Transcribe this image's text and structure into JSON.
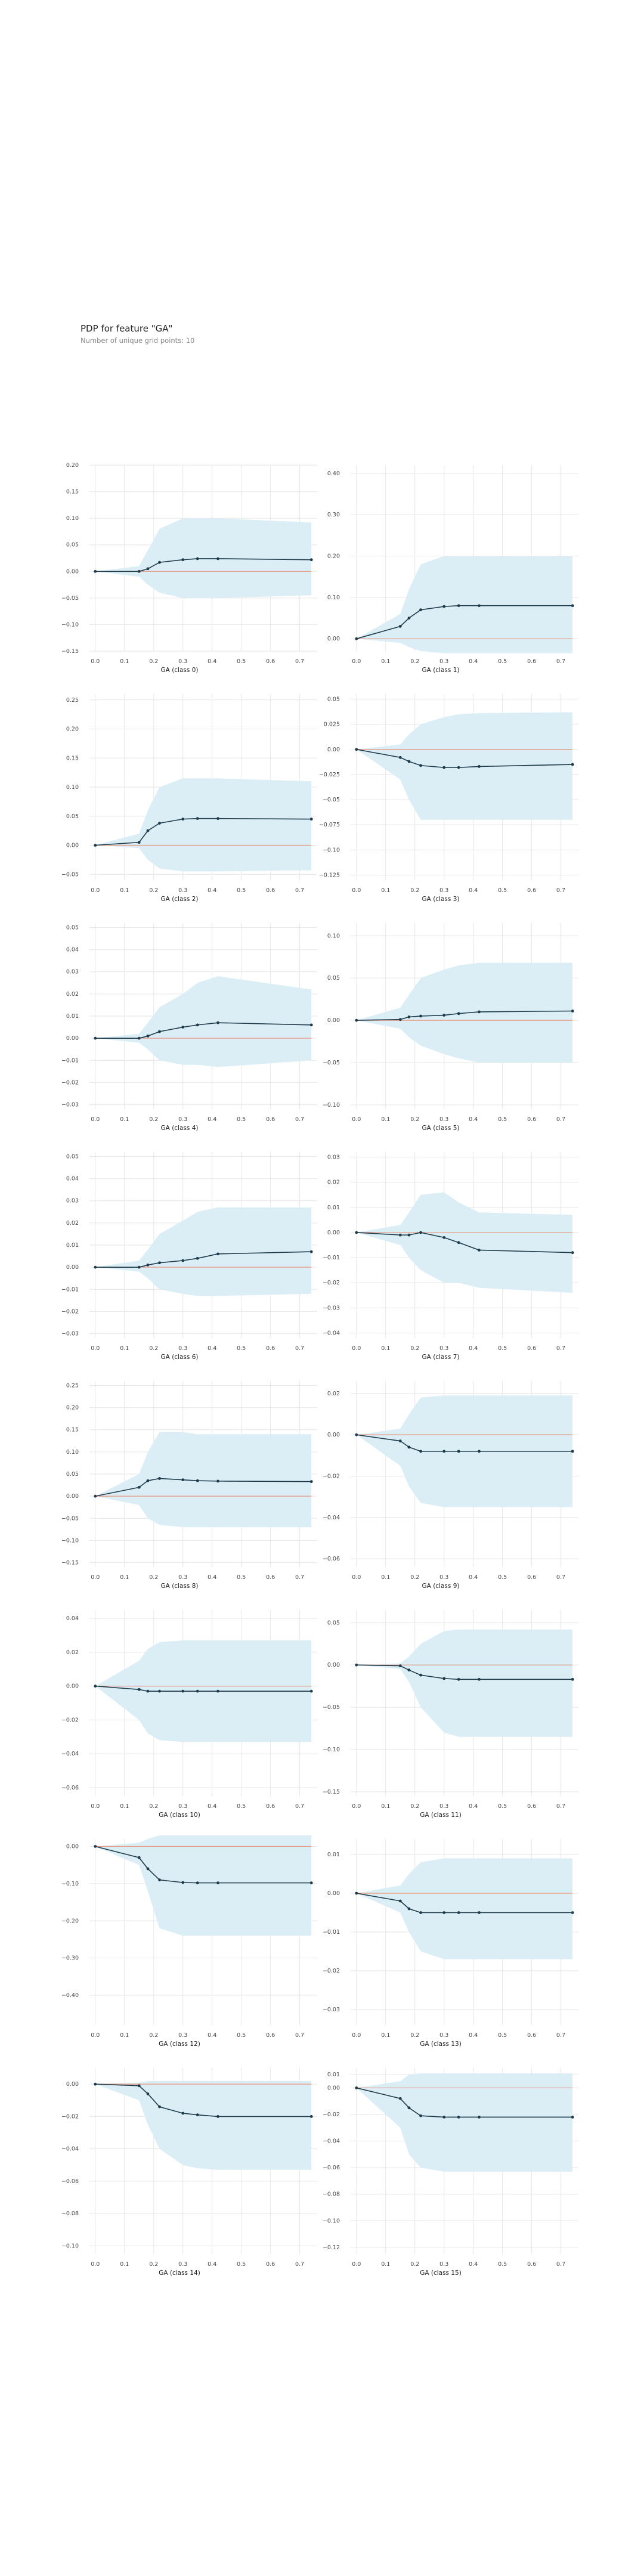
{
  "header": {
    "title": "PDP for feature \"GA\"",
    "subtitle": "Number of unique grid points: 10"
  },
  "colors": {
    "band": "#dbeef6",
    "line": "#1d3b4a",
    "baseline": "#e8967e",
    "grid": "#e6e6e6",
    "tick_text": "#444444"
  },
  "chart_data": [
    {
      "type": "line",
      "xlabel": "GA (class 0)",
      "x": [
        0.0,
        0.15,
        0.18,
        0.22,
        0.3,
        0.35,
        0.42,
        0.74
      ],
      "y": [
        0.0,
        0.0,
        0.005,
        0.017,
        0.022,
        0.024,
        0.024,
        0.022
      ],
      "lower": [
        0.0,
        -0.01,
        -0.025,
        -0.04,
        -0.05,
        -0.05,
        -0.05,
        -0.045
      ],
      "upper": [
        0.0,
        0.01,
        0.04,
        0.08,
        0.1,
        0.1,
        0.1,
        0.092
      ],
      "xticks": [
        0.0,
        0.1,
        0.2,
        0.3,
        0.4,
        0.5,
        0.6,
        0.7
      ],
      "yticks": [
        -0.15,
        -0.1,
        -0.05,
        0.0,
        0.05,
        0.1,
        0.15,
        0.2
      ],
      "xlim": [
        -0.02,
        0.76
      ],
      "ylim": [
        -0.15,
        0.2
      ]
    },
    {
      "type": "line",
      "xlabel": "GA (class 1)",
      "x": [
        0.0,
        0.15,
        0.18,
        0.22,
        0.3,
        0.35,
        0.42,
        0.74
      ],
      "y": [
        0.0,
        0.03,
        0.05,
        0.07,
        0.078,
        0.08,
        0.08,
        0.08
      ],
      "lower": [
        0.0,
        -0.01,
        -0.02,
        -0.03,
        -0.035,
        -0.035,
        -0.035,
        -0.035
      ],
      "upper": [
        0.0,
        0.06,
        0.12,
        0.18,
        0.2,
        0.2,
        0.2,
        0.2
      ],
      "xticks": [
        0.0,
        0.1,
        0.2,
        0.3,
        0.4,
        0.5,
        0.6,
        0.7
      ],
      "yticks": [
        0.0,
        0.1,
        0.2,
        0.3,
        0.4
      ],
      "xlim": [
        -0.02,
        0.76
      ],
      "ylim": [
        -0.03,
        0.42
      ]
    },
    {
      "type": "line",
      "xlabel": "GA (class 2)",
      "x": [
        0.0,
        0.15,
        0.18,
        0.22,
        0.3,
        0.35,
        0.42,
        0.74
      ],
      "y": [
        0.0,
        0.005,
        0.025,
        0.038,
        0.045,
        0.046,
        0.046,
        0.045
      ],
      "lower": [
        0.0,
        -0.005,
        -0.025,
        -0.04,
        -0.045,
        -0.045,
        -0.045,
        -0.043
      ],
      "upper": [
        0.0,
        0.02,
        0.06,
        0.1,
        0.115,
        0.115,
        0.115,
        0.11
      ],
      "xticks": [
        0.0,
        0.1,
        0.2,
        0.3,
        0.4,
        0.5,
        0.6,
        0.7
      ],
      "yticks": [
        -0.05,
        0.0,
        0.05,
        0.1,
        0.15,
        0.2,
        0.25
      ],
      "xlim": [
        -0.02,
        0.76
      ],
      "ylim": [
        -0.06,
        0.26
      ]
    },
    {
      "type": "line",
      "xlabel": "GA (class 3)",
      "x": [
        0.0,
        0.15,
        0.18,
        0.22,
        0.3,
        0.35,
        0.42,
        0.74
      ],
      "y": [
        0.0,
        -0.008,
        -0.012,
        -0.016,
        -0.018,
        -0.018,
        -0.017,
        -0.015
      ],
      "lower": [
        0.0,
        -0.03,
        -0.05,
        -0.07,
        -0.07,
        -0.07,
        -0.07,
        -0.07
      ],
      "upper": [
        0.0,
        0.005,
        0.015,
        0.025,
        0.032,
        0.035,
        0.036,
        0.037
      ],
      "xticks": [
        0.0,
        0.1,
        0.2,
        0.3,
        0.4,
        0.5,
        0.6,
        0.7
      ],
      "yticks": [
        -0.125,
        -0.1,
        -0.075,
        -0.05,
        -0.025,
        0.0,
        0.025,
        0.05
      ],
      "xlim": [
        -0.02,
        0.76
      ],
      "ylim": [
        -0.13,
        0.055
      ]
    },
    {
      "type": "line",
      "xlabel": "GA (class 4)",
      "x": [
        0.0,
        0.15,
        0.18,
        0.22,
        0.3,
        0.35,
        0.42,
        0.74
      ],
      "y": [
        0.0,
        0.0,
        0.001,
        0.003,
        0.005,
        0.006,
        0.007,
        0.006
      ],
      "lower": [
        0.0,
        -0.002,
        -0.005,
        -0.01,
        -0.012,
        -0.012,
        -0.013,
        -0.01
      ],
      "upper": [
        0.0,
        0.002,
        0.007,
        0.014,
        0.02,
        0.025,
        0.028,
        0.022
      ],
      "xticks": [
        0.0,
        0.1,
        0.2,
        0.3,
        0.4,
        0.5,
        0.6,
        0.7
      ],
      "yticks": [
        -0.03,
        -0.02,
        -0.01,
        0.0,
        0.01,
        0.02,
        0.03,
        0.04,
        0.05
      ],
      "xlim": [
        -0.02,
        0.76
      ],
      "ylim": [
        -0.032,
        0.052
      ]
    },
    {
      "type": "line",
      "xlabel": "GA (class 5)",
      "x": [
        0.0,
        0.15,
        0.18,
        0.22,
        0.3,
        0.35,
        0.42,
        0.74
      ],
      "y": [
        0.0,
        0.001,
        0.004,
        0.005,
        0.006,
        0.008,
        0.01,
        0.011
      ],
      "lower": [
        0.0,
        -0.01,
        -0.02,
        -0.03,
        -0.04,
        -0.045,
        -0.05,
        -0.05
      ],
      "upper": [
        0.0,
        0.015,
        0.03,
        0.05,
        0.06,
        0.065,
        0.068,
        0.068
      ],
      "xticks": [
        0.0,
        0.1,
        0.2,
        0.3,
        0.4,
        0.5,
        0.6,
        0.7
      ],
      "yticks": [
        -0.1,
        -0.05,
        0.0,
        0.05,
        0.1
      ],
      "xlim": [
        -0.02,
        0.76
      ],
      "ylim": [
        -0.105,
        0.115
      ]
    },
    {
      "type": "line",
      "xlabel": "GA (class 6)",
      "x": [
        0.0,
        0.15,
        0.18,
        0.22,
        0.3,
        0.35,
        0.42,
        0.74
      ],
      "y": [
        0.0,
        0.0,
        0.001,
        0.002,
        0.003,
        0.004,
        0.006,
        0.007
      ],
      "lower": [
        0.0,
        -0.002,
        -0.005,
        -0.01,
        -0.012,
        -0.013,
        -0.013,
        -0.012
      ],
      "upper": [
        0.0,
        0.003,
        0.008,
        0.015,
        0.021,
        0.025,
        0.027,
        0.027
      ],
      "xticks": [
        0.0,
        0.1,
        0.2,
        0.3,
        0.4,
        0.5,
        0.6,
        0.7
      ],
      "yticks": [
        -0.03,
        -0.02,
        -0.01,
        0.0,
        0.01,
        0.02,
        0.03,
        0.04,
        0.05
      ],
      "xlim": [
        -0.02,
        0.76
      ],
      "ylim": [
        -0.032,
        0.052
      ]
    },
    {
      "type": "line",
      "xlabel": "GA (class 7)",
      "x": [
        0.0,
        0.15,
        0.18,
        0.22,
        0.3,
        0.35,
        0.42,
        0.74
      ],
      "y": [
        0.0,
        -0.001,
        -0.001,
        0.0,
        -0.002,
        -0.004,
        -0.007,
        -0.008
      ],
      "lower": [
        0.0,
        -0.005,
        -0.01,
        -0.015,
        -0.02,
        -0.02,
        -0.022,
        -0.024
      ],
      "upper": [
        0.0,
        0.003,
        0.008,
        0.015,
        0.016,
        0.012,
        0.008,
        0.007
      ],
      "xticks": [
        0.0,
        0.1,
        0.2,
        0.3,
        0.4,
        0.5,
        0.6,
        0.7
      ],
      "yticks": [
        -0.04,
        -0.03,
        -0.02,
        -0.01,
        0.0,
        0.01,
        0.02,
        0.03
      ],
      "xlim": [
        -0.02,
        0.76
      ],
      "ylim": [
        -0.042,
        0.032
      ]
    },
    {
      "type": "line",
      "xlabel": "GA (class 8)",
      "x": [
        0.0,
        0.15,
        0.18,
        0.22,
        0.3,
        0.35,
        0.42,
        0.74
      ],
      "y": [
        0.0,
        0.02,
        0.035,
        0.04,
        0.037,
        0.035,
        0.034,
        0.033
      ],
      "lower": [
        0.0,
        -0.02,
        -0.05,
        -0.065,
        -0.07,
        -0.07,
        -0.07,
        -0.07
      ],
      "upper": [
        0.0,
        0.05,
        0.1,
        0.145,
        0.145,
        0.14,
        0.14,
        0.14
      ],
      "xticks": [
        0.0,
        0.1,
        0.2,
        0.3,
        0.4,
        0.5,
        0.6,
        0.7
      ],
      "yticks": [
        -0.15,
        -0.1,
        -0.05,
        0.0,
        0.05,
        0.1,
        0.15,
        0.2,
        0.25
      ],
      "xlim": [
        -0.02,
        0.76
      ],
      "ylim": [
        -0.16,
        0.26
      ]
    },
    {
      "type": "line",
      "xlabel": "GA (class 9)",
      "x": [
        0.0,
        0.15,
        0.18,
        0.22,
        0.3,
        0.35,
        0.42,
        0.74
      ],
      "y": [
        0.0,
        -0.003,
        -0.006,
        -0.008,
        -0.008,
        -0.008,
        -0.008,
        -0.008
      ],
      "lower": [
        0.0,
        -0.015,
        -0.025,
        -0.033,
        -0.035,
        -0.035,
        -0.035,
        -0.035
      ],
      "upper": [
        0.0,
        0.003,
        0.01,
        0.018,
        0.019,
        0.019,
        0.019,
        0.019
      ],
      "xticks": [
        0.0,
        0.1,
        0.2,
        0.3,
        0.4,
        0.5,
        0.6,
        0.7
      ],
      "yticks": [
        -0.06,
        -0.04,
        -0.02,
        0.0,
        0.02
      ],
      "xlim": [
        -0.02,
        0.76
      ],
      "ylim": [
        -0.064,
        0.026
      ]
    },
    {
      "type": "line",
      "xlabel": "GA (class 10)",
      "x": [
        0.0,
        0.15,
        0.18,
        0.22,
        0.3,
        0.35,
        0.42,
        0.74
      ],
      "y": [
        0.0,
        -0.002,
        -0.003,
        -0.003,
        -0.003,
        -0.003,
        -0.003,
        -0.003
      ],
      "lower": [
        0.0,
        -0.02,
        -0.028,
        -0.032,
        -0.033,
        -0.033,
        -0.033,
        -0.033
      ],
      "upper": [
        0.0,
        0.015,
        0.022,
        0.026,
        0.027,
        0.027,
        0.027,
        0.027
      ],
      "xticks": [
        0.0,
        0.1,
        0.2,
        0.3,
        0.4,
        0.5,
        0.6,
        0.7
      ],
      "yticks": [
        -0.06,
        -0.04,
        -0.02,
        0.0,
        0.02,
        0.04
      ],
      "xlim": [
        -0.02,
        0.76
      ],
      "ylim": [
        -0.065,
        0.045
      ]
    },
    {
      "type": "line",
      "xlabel": "GA (class 11)",
      "x": [
        0.0,
        0.15,
        0.18,
        0.22,
        0.3,
        0.35,
        0.42,
        0.74
      ],
      "y": [
        0.0,
        -0.001,
        -0.006,
        -0.012,
        -0.016,
        -0.017,
        -0.017,
        -0.017
      ],
      "lower": [
        0.0,
        -0.005,
        -0.02,
        -0.05,
        -0.08,
        -0.085,
        -0.085,
        -0.085
      ],
      "upper": [
        0.0,
        0.002,
        0.01,
        0.025,
        0.04,
        0.042,
        0.042,
        0.042
      ],
      "xticks": [
        0.0,
        0.1,
        0.2,
        0.3,
        0.4,
        0.5,
        0.6,
        0.7
      ],
      "yticks": [
        -0.15,
        -0.1,
        -0.05,
        0.0,
        0.05
      ],
      "xlim": [
        -0.02,
        0.76
      ],
      "ylim": [
        -0.155,
        0.065
      ]
    },
    {
      "type": "line",
      "xlabel": "GA (class 12)",
      "x": [
        0.0,
        0.15,
        0.18,
        0.22,
        0.3,
        0.35,
        0.42,
        0.74
      ],
      "y": [
        0.0,
        -0.03,
        -0.06,
        -0.09,
        -0.097,
        -0.098,
        -0.098,
        -0.098
      ],
      "lower": [
        0.0,
        -0.05,
        -0.12,
        -0.22,
        -0.24,
        -0.24,
        -0.24,
        -0.24
      ],
      "upper": [
        0.0,
        0.01,
        0.02,
        0.03,
        0.03,
        0.03,
        0.03,
        0.03
      ],
      "xticks": [
        0.0,
        0.1,
        0.2,
        0.3,
        0.4,
        0.5,
        0.6,
        0.7
      ],
      "yticks": [
        -0.4,
        -0.3,
        -0.2,
        -0.1,
        0.0
      ],
      "xlim": [
        -0.02,
        0.76
      ],
      "ylim": [
        -0.48,
        0.02
      ]
    },
    {
      "type": "line",
      "xlabel": "GA (class 13)",
      "x": [
        0.0,
        0.15,
        0.18,
        0.22,
        0.3,
        0.35,
        0.42,
        0.74
      ],
      "y": [
        0.0,
        -0.002,
        -0.004,
        -0.005,
        -0.005,
        -0.005,
        -0.005,
        -0.005
      ],
      "lower": [
        0.0,
        -0.005,
        -0.01,
        -0.015,
        -0.017,
        -0.017,
        -0.017,
        -0.017
      ],
      "upper": [
        0.0,
        0.002,
        0.005,
        0.008,
        0.009,
        0.009,
        0.009,
        0.009
      ],
      "xticks": [
        0.0,
        0.1,
        0.2,
        0.3,
        0.4,
        0.5,
        0.6,
        0.7
      ],
      "yticks": [
        -0.03,
        -0.02,
        -0.01,
        0.0,
        0.01
      ],
      "xlim": [
        -0.02,
        0.76
      ],
      "ylim": [
        -0.034,
        0.014
      ]
    },
    {
      "type": "line",
      "xlabel": "GA (class 14)",
      "x": [
        0.0,
        0.15,
        0.18,
        0.22,
        0.3,
        0.35,
        0.42,
        0.74
      ],
      "y": [
        0.0,
        -0.001,
        -0.006,
        -0.014,
        -0.018,
        -0.019,
        -0.02,
        -0.02
      ],
      "lower": [
        0.0,
        -0.01,
        -0.025,
        -0.04,
        -0.05,
        -0.052,
        -0.053,
        -0.053
      ],
      "upper": [
        0.0,
        0.001,
        0.002,
        0.002,
        0.002,
        0.002,
        0.002,
        0.002
      ],
      "xticks": [
        0.0,
        0.1,
        0.2,
        0.3,
        0.4,
        0.5,
        0.6,
        0.7
      ],
      "yticks": [
        -0.1,
        -0.08,
        -0.06,
        -0.04,
        -0.02,
        0.0
      ],
      "xlim": [
        -0.02,
        0.76
      ],
      "ylim": [
        -0.105,
        0.01
      ]
    },
    {
      "type": "line",
      "xlabel": "GA (class 15)",
      "x": [
        0.0,
        0.15,
        0.18,
        0.22,
        0.3,
        0.35,
        0.42,
        0.74
      ],
      "y": [
        0.0,
        -0.008,
        -0.015,
        -0.021,
        -0.022,
        -0.022,
        -0.022,
        -0.022
      ],
      "lower": [
        0.0,
        -0.03,
        -0.05,
        -0.06,
        -0.063,
        -0.063,
        -0.063,
        -0.063
      ],
      "upper": [
        0.0,
        0.005,
        0.01,
        0.011,
        0.011,
        0.011,
        0.011,
        0.011
      ],
      "xticks": [
        0.0,
        0.1,
        0.2,
        0.3,
        0.4,
        0.5,
        0.6,
        0.7
      ],
      "yticks": [
        -0.12,
        -0.1,
        -0.08,
        -0.06,
        -0.04,
        -0.02,
        0.0,
        0.01
      ],
      "xlim": [
        -0.02,
        0.76
      ],
      "ylim": [
        -0.125,
        0.015
      ]
    }
  ]
}
